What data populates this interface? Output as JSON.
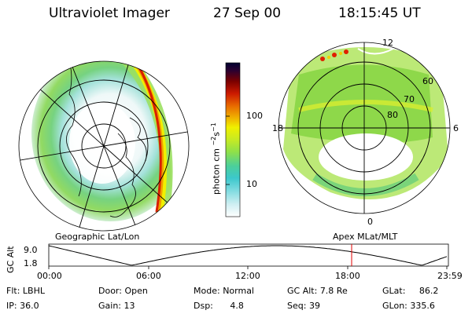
{
  "header": {
    "title": "Ultraviolet Imager",
    "date": "27 Sep 00",
    "time": "18:15:45 UT"
  },
  "left_panel": {
    "label": "Geographic Lat/Lon"
  },
  "right_panel": {
    "label": "Apex MLat/MLT",
    "mlt_labels": {
      "top": "12",
      "left": "18",
      "right": "6",
      "bottom": "0"
    },
    "lat_labels": [
      "60",
      "70",
      "80"
    ]
  },
  "colorbar": {
    "unit_label": "photon cm",
    "unit_sup1": "−2",
    "unit_mid": "s",
    "unit_sup2": "−1",
    "tick_labels": [
      "100",
      "10"
    ],
    "colors": [
      "#ffffff",
      "#cfeff2",
      "#7fdbe0",
      "#3cc8cc",
      "#4ccf9a",
      "#8ee04a",
      "#c6ea24",
      "#f0f000",
      "#f0b400",
      "#e86a00",
      "#cc1a00",
      "#7a0000",
      "#2a0030",
      "#000030"
    ]
  },
  "altitude_plot": {
    "y_axis_label": "GC Alt",
    "y_ticks": [
      "9.0",
      "1.8"
    ],
    "x_ticks": [
      "00:00",
      "06:00",
      "12:00",
      "18:00",
      "23:59"
    ],
    "marker_time_hours": 18.26
  },
  "footer": {
    "filter_label": "Flt:",
    "filter_value": "LBHL",
    "ip_label": "IP:",
    "ip_value": "36.0",
    "door_label": "Door:",
    "door_value": "Open",
    "gain_label": "Gain:",
    "gain_value": "13",
    "mode_label": "Mode:",
    "mode_value": "Normal",
    "dsp_label": "Dsp:",
    "dsp_value": "4.8",
    "gcalt_label": "GC Alt:",
    "gcalt_value": "7.8 Re",
    "seq_label": "Seq:",
    "seq_value": "39",
    "glat_label": "GLat:",
    "glat_value": "86.2",
    "glon_label": "GLon:",
    "glon_value": "335.6"
  }
}
